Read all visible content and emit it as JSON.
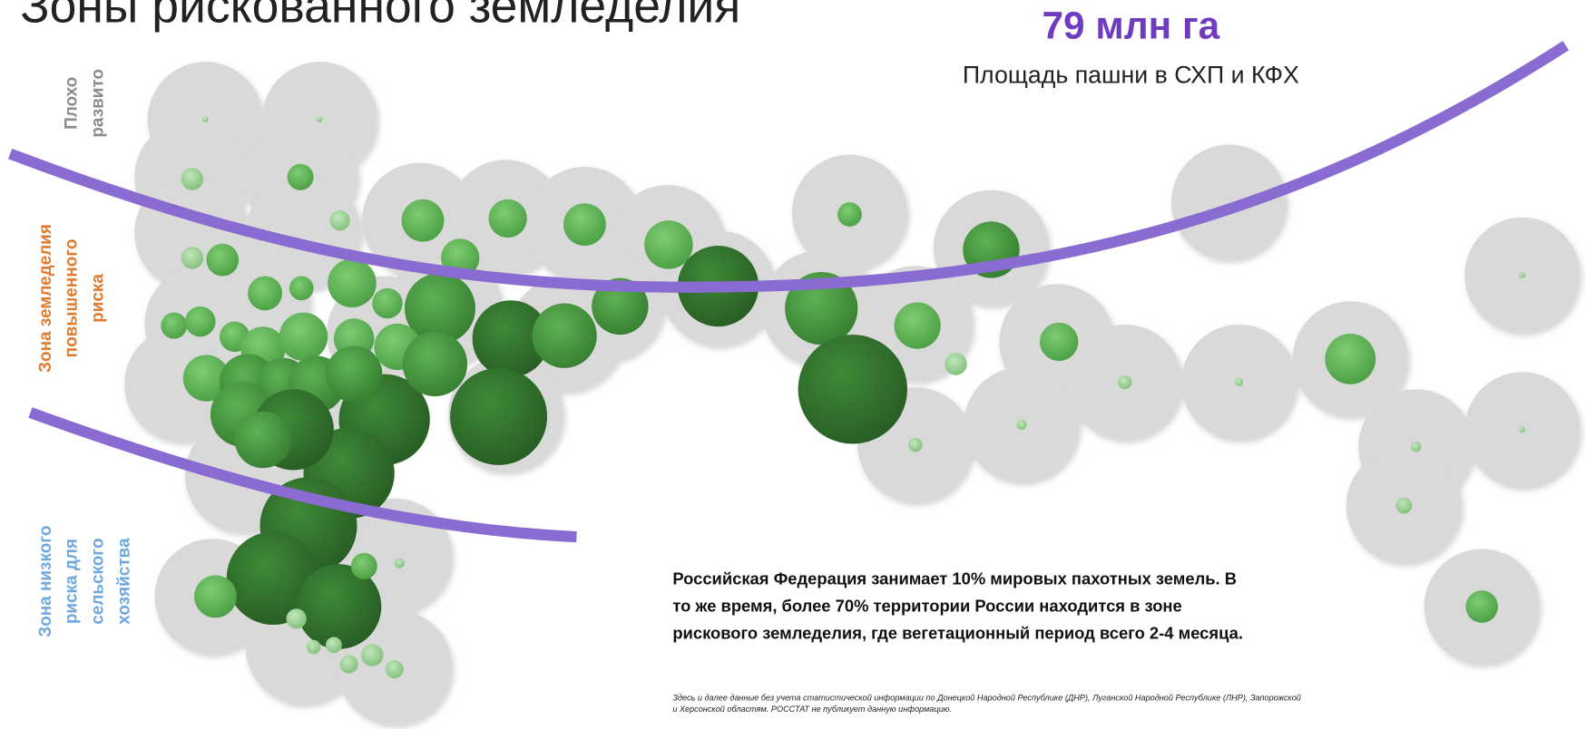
{
  "title": "Зоны рискованного земледелия",
  "stat": {
    "value": "79 млн га",
    "label": "Площадь пашни в СХП и КФХ"
  },
  "zones": [
    {
      "lines": [
        "Плохо",
        "развито"
      ]
    },
    {
      "lines": [
        "Зона земледелия",
        "повышенного",
        "риска"
      ]
    },
    {
      "lines": [
        "Зона низкого",
        "риска для",
        "сельского",
        "хозяйства"
      ]
    }
  ],
  "text": {
    "lines": [
      "Российская Федерация занимает 10% мировых пахотных земель. В",
      "то же время, более 70% территории России находится в зоне",
      "рискового земледелия, где вегетационный период всего 2-4 месяца."
    ]
  },
  "footnote": {
    "lines": [
      "Здесь и далее данные без учета статистической информации по Донецкой Народной Республике (ДНР), Луганской Народной Республике (ЛНР), Запорожской",
      "и Херсонской областям. РОССТАТ  не публикует данную информацию."
    ]
  }
}
